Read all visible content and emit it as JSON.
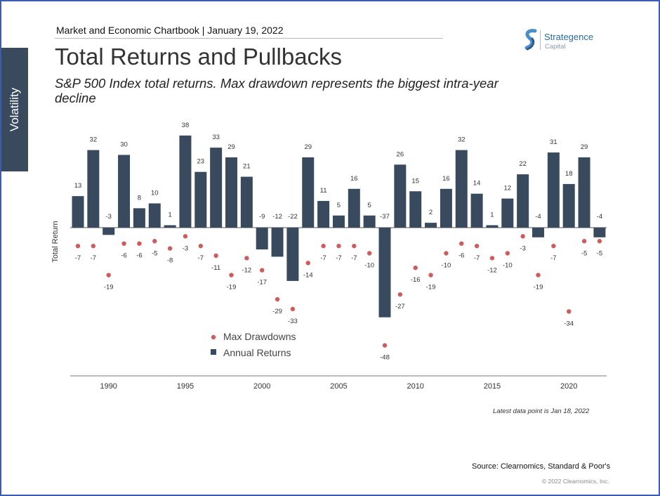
{
  "header": {
    "chartbook": "Market and Economic Chartbook | January 19, 2022"
  },
  "side_tab": {
    "label": "Volatility"
  },
  "logo": {
    "brand": "Strategence",
    "sub": "Capital"
  },
  "colors": {
    "bars": "#3a4a5e",
    "dots": "#cd5c5c",
    "axis": "#333333",
    "side_tab": "#3a4a5e"
  },
  "icons": [
    "strategence-logo-icon"
  ],
  "chart_data": {
    "type": "bar",
    "title": "Total Returns and Pullbacks",
    "subtitle": "S&P 500 Index total returns. Max drawdown represents the biggest intra-year decline",
    "ylabel": "Total Return",
    "xlabel": "",
    "x": [
      1988,
      1989,
      1990,
      1991,
      1992,
      1993,
      1994,
      1995,
      1996,
      1997,
      1998,
      1999,
      2000,
      2001,
      2002,
      2003,
      2004,
      2005,
      2006,
      2007,
      2008,
      2009,
      2010,
      2011,
      2012,
      2013,
      2014,
      2015,
      2016,
      2017,
      2018,
      2019,
      2020,
      2021,
      2022
    ],
    "x_ticks": [
      1990,
      1995,
      2000,
      2005,
      2010,
      2015,
      2020
    ],
    "series": [
      {
        "name": "Annual Returns",
        "kind": "bar",
        "values": [
          13,
          32,
          -3,
          30,
          8,
          10,
          1,
          38,
          23,
          33,
          29,
          21,
          -9,
          -12,
          -22,
          29,
          11,
          5,
          16,
          5,
          -37,
          26,
          15,
          2,
          16,
          32,
          14,
          1,
          12,
          22,
          -4,
          31,
          18,
          29,
          -4
        ]
      },
      {
        "name": "Max Drawdowns",
        "kind": "dot",
        "values": [
          -7,
          -7,
          -19,
          -6,
          -6,
          -5,
          -8,
          -3,
          -7,
          -11,
          -19,
          -12,
          -17,
          -29,
          -33,
          -14,
          -7,
          -7,
          -7,
          -10,
          -48,
          -27,
          -16,
          -19,
          -10,
          -6,
          -7,
          -12,
          -10,
          -3,
          -19,
          -7,
          -34,
          -5,
          -5
        ]
      }
    ],
    "legend": [
      "Max Drawdowns",
      "Annual Returns"
    ],
    "legend_position": "center",
    "grid": false
  },
  "footer": {
    "note": "Latest data point is Jan 18, 2022",
    "source": "Source: Clearnomics, Standard & Poor's",
    "copyright": "© 2022 Clearnomics, Inc."
  }
}
